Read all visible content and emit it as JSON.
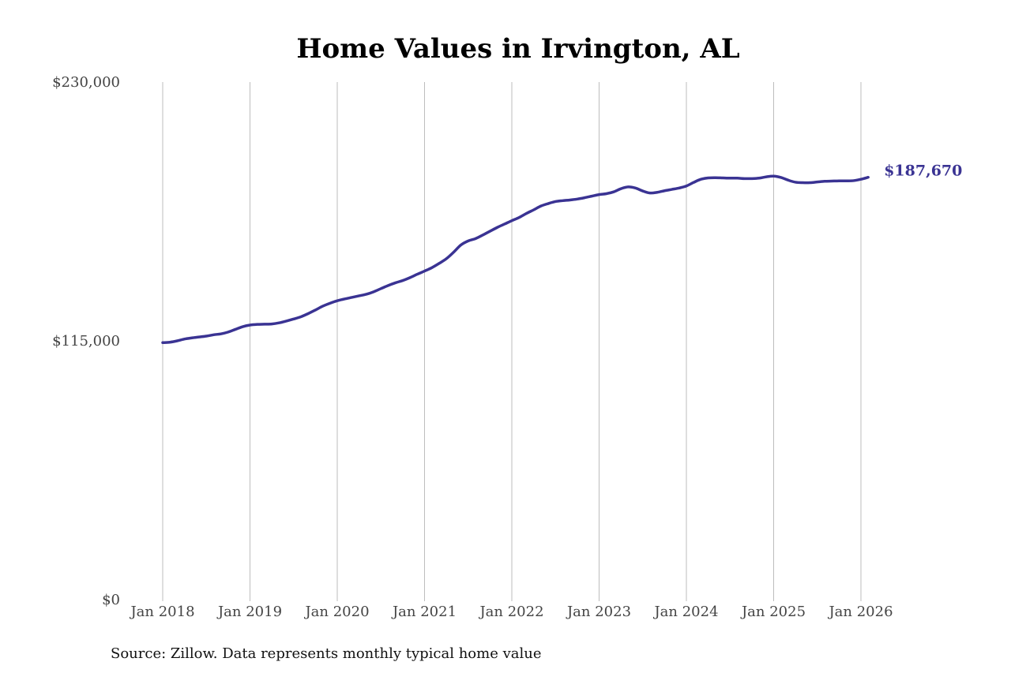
{
  "chart_data": {
    "type": "line",
    "title": "Home Values in Irvington, AL",
    "source_note": "Source: Zillow. Data represents monthly typical home value",
    "y_ticks": [
      {
        "value": 0,
        "label": "$0"
      },
      {
        "value": 115000,
        "label": "$115,000"
      },
      {
        "value": 230000,
        "label": "$230,000"
      }
    ],
    "ylim": [
      0,
      230000
    ],
    "x_ticks": [
      {
        "date": "2018-01",
        "label": "Jan 2018"
      },
      {
        "date": "2019-01",
        "label": "Jan 2019"
      },
      {
        "date": "2020-01",
        "label": "Jan 2020"
      },
      {
        "date": "2021-01",
        "label": "Jan 2021"
      },
      {
        "date": "2022-01",
        "label": "Jan 2022"
      },
      {
        "date": "2023-01",
        "label": "Jan 2023"
      },
      {
        "date": "2024-01",
        "label": "Jan 2024"
      },
      {
        "date": "2025-01",
        "label": "Jan 2025"
      },
      {
        "date": "2026-01",
        "label": "Jan 2026"
      }
    ],
    "grid": "vertical",
    "line_color": "#3a3393",
    "end_label": "$187,670",
    "series": [
      {
        "x": [
          "2018-01",
          "2018-02",
          "2018-03",
          "2018-04",
          "2018-05",
          "2018-06",
          "2018-07",
          "2018-08",
          "2018-09",
          "2018-10",
          "2018-11",
          "2018-12",
          "2019-01",
          "2019-02",
          "2019-03",
          "2019-04",
          "2019-05",
          "2019-06",
          "2019-07",
          "2019-08",
          "2019-09",
          "2019-10",
          "2019-11",
          "2019-12",
          "2020-01",
          "2020-02",
          "2020-03",
          "2020-04",
          "2020-05",
          "2020-06",
          "2020-07",
          "2020-08",
          "2020-09",
          "2020-10",
          "2020-11",
          "2020-12",
          "2021-01",
          "2021-02",
          "2021-03",
          "2021-04",
          "2021-05",
          "2021-06",
          "2021-07",
          "2021-08",
          "2021-09",
          "2021-10",
          "2021-11",
          "2021-12",
          "2022-01",
          "2022-02",
          "2022-03",
          "2022-04",
          "2022-05",
          "2022-06",
          "2022-07",
          "2022-08",
          "2022-09",
          "2022-10",
          "2022-11",
          "2022-12",
          "2023-01",
          "2023-02",
          "2023-03",
          "2023-04",
          "2023-05",
          "2023-06",
          "2023-07",
          "2023-08",
          "2023-09",
          "2023-10",
          "2023-11",
          "2023-12",
          "2024-01",
          "2024-02",
          "2024-03",
          "2024-04",
          "2024-05",
          "2024-06",
          "2024-07",
          "2024-08",
          "2024-09",
          "2024-10",
          "2024-11",
          "2024-12",
          "2025-01",
          "2025-02",
          "2025-03",
          "2025-04",
          "2025-05",
          "2025-06",
          "2025-07",
          "2025-08",
          "2025-09",
          "2025-10",
          "2025-11",
          "2025-12",
          "2026-01",
          "2026-02"
        ],
        "values": [
          114200,
          114400,
          115000,
          115800,
          116300,
          116700,
          117100,
          117700,
          118100,
          118900,
          120100,
          121300,
          122000,
          122300,
          122400,
          122500,
          123000,
          123800,
          124700,
          125700,
          127100,
          128700,
          130400,
          131700,
          132800,
          133600,
          134300,
          135000,
          135700,
          136800,
          138200,
          139600,
          140800,
          141800,
          143100,
          144600,
          146000,
          147500,
          149400,
          151500,
          154400,
          157600,
          159400,
          160400,
          162000,
          163700,
          165400,
          166900,
          168400,
          169800,
          171600,
          173200,
          174900,
          176000,
          176900,
          177300,
          177600,
          178000,
          178600,
          179300,
          180000,
          180400,
          181200,
          182600,
          183400,
          182900,
          181600,
          180700,
          181000,
          181700,
          182300,
          182900,
          183800,
          185400,
          186800,
          187400,
          187500,
          187400,
          187300,
          187300,
          187100,
          187100,
          187300,
          187900,
          188200,
          187600,
          186400,
          185500,
          185300,
          185300,
          185600,
          185900,
          186000,
          186100,
          186100,
          186200,
          186800,
          187670
        ]
      }
    ]
  }
}
